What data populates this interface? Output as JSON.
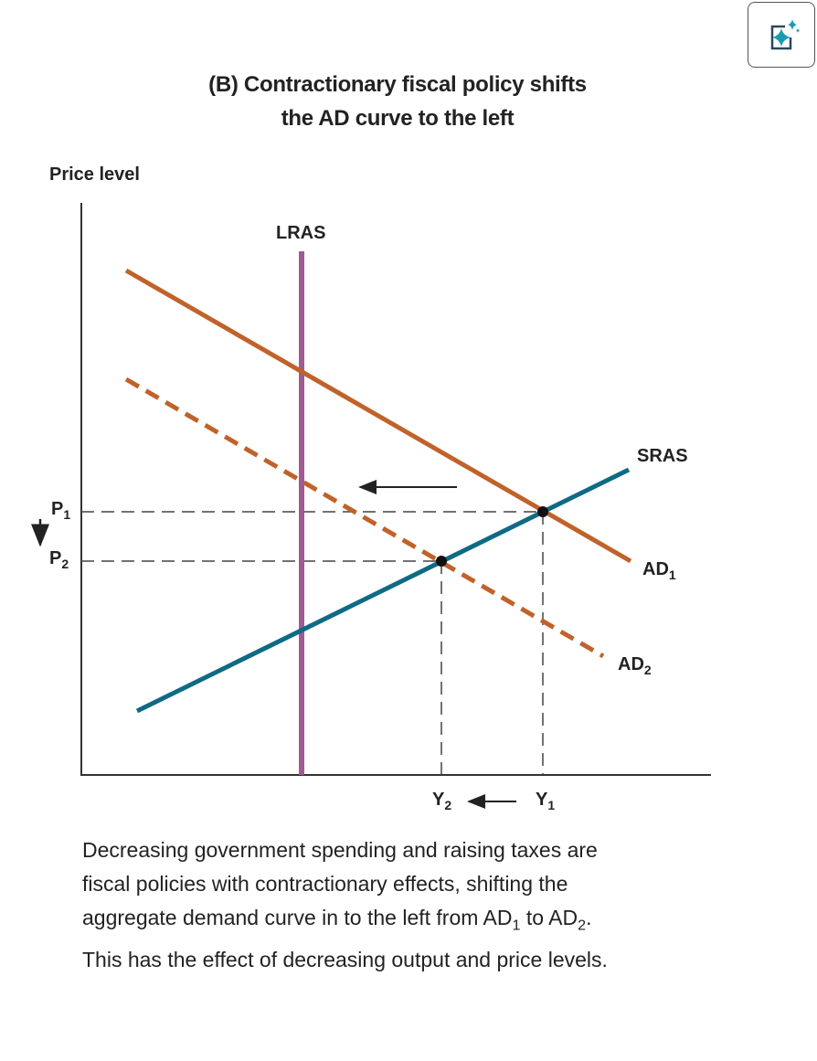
{
  "ai_button": {
    "icon": "sparkle-icon",
    "accent_color": "#1a9bb0"
  },
  "title_line1": "(B) Contractionary fiscal policy shifts",
  "title_line2": "the AD curve to the left",
  "y_axis_label": "Price level",
  "curves": {
    "lras": {
      "label": "LRAS",
      "color": "#a05a94"
    },
    "sras": {
      "label": "SRAS",
      "color": "#0f6a85"
    },
    "ad1": {
      "label": "AD",
      "sub": "1",
      "color": "#c0622a"
    },
    "ad2": {
      "label": "AD",
      "sub": "2",
      "color": "#c0622a",
      "style": "dashed"
    }
  },
  "price_labels": {
    "p1": "P",
    "p1_sub": "1",
    "p2": "P",
    "p2_sub": "2"
  },
  "output_labels": {
    "y1": "Y",
    "y1_sub": "1",
    "y2": "Y",
    "y2_sub": "2"
  },
  "caption": {
    "line1": "Decreasing government spending and raising taxes are",
    "line2": "fiscal policies with contractionary effects, shifting the",
    "line3a": "aggregate demand curve in to the left from AD",
    "line3b": "1",
    "line3c": " to AD",
    "line3d": "2",
    "line3e": ".",
    "line4": "This has the effect of decreasing output and price levels."
  }
}
